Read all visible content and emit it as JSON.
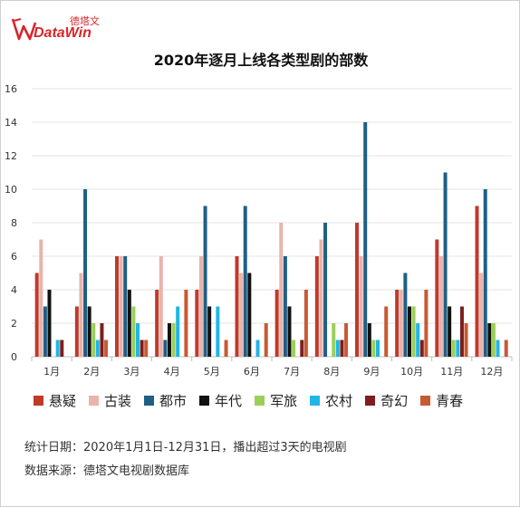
{
  "header": {
    "logo_cn": "德塔文",
    "logo_en": "DataWin",
    "title": "2020年逐月上线各类型剧的部数"
  },
  "footnotes": {
    "stat_date": "统计日期：2020年1月1日-12月31日，播出超过3天的电视剧",
    "source": "数据来源：德塔文电视剧数据库"
  },
  "colors": {
    "brand": "#d9252a",
    "grid": "#e3e3e3",
    "axis": "#bfbfbf"
  },
  "chart_data": {
    "type": "bar",
    "title": "2020年逐月上线各类型剧的部数",
    "xlabel": "",
    "ylabel": "",
    "ylim": [
      0,
      16
    ],
    "yticks": [
      0,
      2,
      4,
      6,
      8,
      10,
      12,
      14,
      16
    ],
    "grid": true,
    "legend_position": "bottom",
    "categories": [
      "1月",
      "2月",
      "3月",
      "4月",
      "5月",
      "6月",
      "7月",
      "8月",
      "9月",
      "10月",
      "11月",
      "12月"
    ],
    "series": [
      {
        "name": "悬疑",
        "color": "#c0392b",
        "values": [
          5,
          3,
          6,
          4,
          4,
          6,
          4,
          6,
          8,
          4,
          7,
          9
        ]
      },
      {
        "name": "古装",
        "color": "#e8b4ac",
        "values": [
          7,
          5,
          6,
          6,
          6,
          5,
          8,
          7,
          6,
          4,
          6,
          5
        ]
      },
      {
        "name": "都市",
        "color": "#1f5f85",
        "values": [
          3,
          10,
          6,
          1,
          9,
          9,
          6,
          8,
          14,
          5,
          11,
          10
        ]
      },
      {
        "name": "年代",
        "color": "#111111",
        "values": [
          4,
          3,
          4,
          2,
          3,
          5,
          3,
          0,
          2,
          3,
          3,
          2
        ]
      },
      {
        "name": "军旅",
        "color": "#9bcf5a",
        "values": [
          0,
          2,
          3,
          2,
          0,
          0,
          1,
          2,
          1,
          3,
          1,
          2
        ]
      },
      {
        "name": "农村",
        "color": "#1fb6e6",
        "values": [
          1,
          1,
          2,
          3,
          3,
          1,
          0,
          1,
          1,
          2,
          1,
          1
        ]
      },
      {
        "name": "奇幻",
        "color": "#7b1f1f",
        "values": [
          1,
          2,
          1,
          0,
          0,
          0,
          1,
          1,
          0,
          1,
          3,
          0
        ]
      },
      {
        "name": "青春",
        "color": "#c85a32",
        "values": [
          0,
          1,
          1,
          4,
          1,
          2,
          4,
          2,
          3,
          4,
          2,
          1
        ]
      }
    ]
  }
}
